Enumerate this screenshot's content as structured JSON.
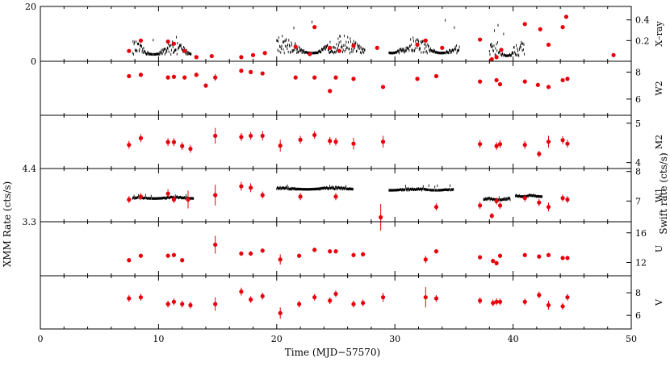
{
  "figure": {
    "xlabel": "Time (MJD−57570)",
    "left_ylabel": "XMM Rate (cts/s)",
    "right_ylabel": "Swift rate (cts/s)",
    "x_ticks": [
      "0",
      "10",
      "20",
      "30",
      "40",
      "50"
    ],
    "colors": {
      "xmm": "#000000",
      "swift": "#e8000b",
      "axis": "#000000"
    }
  },
  "chart_data": [
    {
      "type": "scatter",
      "panel": "X-ray",
      "band_label": "X–ray",
      "xlim": [
        0,
        50
      ],
      "left_ylim": [
        0,
        20
      ],
      "left_ticks": [
        "0",
        "20"
      ],
      "right_ylim": [
        0,
        0.53
      ],
      "right_ticks": [
        "0.2",
        "0.4"
      ],
      "xmm_segments": [
        {
          "x0": 7.8,
          "x1": 12.8,
          "base": 2.5,
          "amp": 5.0,
          "peak": 9.0
        },
        {
          "x0": 20.0,
          "x1": 27.5,
          "base": 3.0,
          "amp": 6.5,
          "peak": 15.0
        },
        {
          "x0": 29.5,
          "x1": 35.5,
          "base": 3.0,
          "amp": 6.0,
          "peak": 15.5
        },
        {
          "x0": 38.0,
          "x1": 41.0,
          "base": 2.0,
          "amp": 6.0,
          "peak": 15.0
        }
      ],
      "swift_points": [
        {
          "x": 7.5,
          "y": 0.1
        },
        {
          "x": 8.5,
          "y": 0.2
        },
        {
          "x": 10.8,
          "y": 0.19
        },
        {
          "x": 11.3,
          "y": 0.17
        },
        {
          "x": 12.2,
          "y": 0.1
        },
        {
          "x": 13.2,
          "y": 0.04
        },
        {
          "x": 14.5,
          "y": 0.05
        },
        {
          "x": 17.0,
          "y": 0.04
        },
        {
          "x": 18.0,
          "y": 0.06
        },
        {
          "x": 19.0,
          "y": 0.08
        },
        {
          "x": 21.6,
          "y": 0.14
        },
        {
          "x": 22.8,
          "y": 0.07
        },
        {
          "x": 23.2,
          "y": 0.33
        },
        {
          "x": 24.5,
          "y": 0.13
        },
        {
          "x": 25.3,
          "y": 0.1
        },
        {
          "x": 26.5,
          "y": 0.15
        },
        {
          "x": 28.5,
          "y": 0.13
        },
        {
          "x": 31.9,
          "y": 0.16
        },
        {
          "x": 32.6,
          "y": 0.2
        },
        {
          "x": 34.0,
          "y": 0.13
        },
        {
          "x": 37.2,
          "y": 0.21
        },
        {
          "x": 38.2,
          "y": 0.02
        },
        {
          "x": 38.6,
          "y": 0.04
        },
        {
          "x": 39.0,
          "y": 0.11
        },
        {
          "x": 41.0,
          "y": 0.36
        },
        {
          "x": 42.3,
          "y": 0.31
        },
        {
          "x": 43.0,
          "y": 0.16
        },
        {
          "x": 44.2,
          "y": 0.33
        },
        {
          "x": 44.5,
          "y": 0.43
        },
        {
          "x": 48.5,
          "y": 0.06
        }
      ]
    },
    {
      "type": "scatter",
      "panel": "W2",
      "band_label": "W2",
      "xlim": [
        0,
        50
      ],
      "right_ylim": [
        4.8,
        8.8
      ],
      "right_ticks": [
        "6",
        "8"
      ],
      "swift_points": [
        {
          "x": 7.5,
          "y": 7.7,
          "err": 0.15
        },
        {
          "x": 8.5,
          "y": 7.8,
          "err": 0.15
        },
        {
          "x": 10.8,
          "y": 7.6,
          "err": 0.15
        },
        {
          "x": 11.3,
          "y": 7.65,
          "err": 0.15
        },
        {
          "x": 12.2,
          "y": 7.6,
          "err": 0.15
        },
        {
          "x": 13.2,
          "y": 7.8,
          "err": 0.15
        },
        {
          "x": 14.0,
          "y": 7.0,
          "err": 0.15
        },
        {
          "x": 14.8,
          "y": 7.6,
          "err": 0.25
        },
        {
          "x": 17.0,
          "y": 8.1,
          "err": 0.15
        },
        {
          "x": 17.8,
          "y": 8.0,
          "err": 0.15
        },
        {
          "x": 18.8,
          "y": 7.9,
          "err": 0.15
        },
        {
          "x": 21.6,
          "y": 7.6,
          "err": 0.15
        },
        {
          "x": 23.2,
          "y": 7.6,
          "err": 0.15
        },
        {
          "x": 24.5,
          "y": 6.6,
          "err": 0.15
        },
        {
          "x": 25.0,
          "y": 7.6,
          "err": 0.15
        },
        {
          "x": 26.5,
          "y": 7.5,
          "err": 0.15
        },
        {
          "x": 29.0,
          "y": 6.9,
          "err": 0.15
        },
        {
          "x": 31.9,
          "y": 7.5,
          "err": 0.15
        },
        {
          "x": 33.5,
          "y": 7.7,
          "err": 0.15
        },
        {
          "x": 37.2,
          "y": 7.3,
          "err": 0.15
        },
        {
          "x": 38.6,
          "y": 7.4,
          "err": 0.15
        },
        {
          "x": 38.9,
          "y": 7.1,
          "err": 0.15
        },
        {
          "x": 41.0,
          "y": 7.3,
          "err": 0.15
        },
        {
          "x": 42.1,
          "y": 7.05,
          "err": 0.15
        },
        {
          "x": 43.0,
          "y": 6.9,
          "err": 0.15
        },
        {
          "x": 44.2,
          "y": 7.4,
          "err": 0.15
        },
        {
          "x": 44.6,
          "y": 7.5,
          "err": 0.15
        }
      ]
    },
    {
      "type": "scatter",
      "panel": "M2",
      "band_label": "M2",
      "xlim": [
        0,
        50
      ],
      "right_ylim": [
        3.85,
        5.2
      ],
      "right_ticks": [
        "4",
        "5"
      ],
      "swift_points": [
        {
          "x": 7.5,
          "y": 4.45,
          "err": 0.1
        },
        {
          "x": 8.5,
          "y": 4.62,
          "err": 0.1
        },
        {
          "x": 10.8,
          "y": 4.52,
          "err": 0.1
        },
        {
          "x": 11.3,
          "y": 4.52,
          "err": 0.1
        },
        {
          "x": 12.0,
          "y": 4.42,
          "err": 0.1
        },
        {
          "x": 12.7,
          "y": 4.35,
          "err": 0.1
        },
        {
          "x": 14.8,
          "y": 4.68,
          "err": 0.2
        },
        {
          "x": 17.0,
          "y": 4.65,
          "err": 0.1
        },
        {
          "x": 17.8,
          "y": 4.68,
          "err": 0.1
        },
        {
          "x": 18.8,
          "y": 4.68,
          "err": 0.12
        },
        {
          "x": 20.3,
          "y": 4.43,
          "err": 0.15
        },
        {
          "x": 22.0,
          "y": 4.58,
          "err": 0.1
        },
        {
          "x": 23.2,
          "y": 4.7,
          "err": 0.1
        },
        {
          "x": 24.5,
          "y": 4.55,
          "err": 0.1
        },
        {
          "x": 25.0,
          "y": 4.53,
          "err": 0.1
        },
        {
          "x": 26.5,
          "y": 4.48,
          "err": 0.15
        },
        {
          "x": 29.0,
          "y": 4.53,
          "err": 0.15
        },
        {
          "x": 37.2,
          "y": 4.47,
          "err": 0.1
        },
        {
          "x": 38.6,
          "y": 4.42,
          "err": 0.1
        },
        {
          "x": 38.9,
          "y": 4.47,
          "err": 0.1
        },
        {
          "x": 41.0,
          "y": 4.45,
          "err": 0.1
        },
        {
          "x": 42.2,
          "y": 4.22,
          "err": 0.08
        },
        {
          "x": 43.0,
          "y": 4.53,
          "err": 0.15
        },
        {
          "x": 44.2,
          "y": 4.57,
          "err": 0.1
        },
        {
          "x": 44.6,
          "y": 4.48,
          "err": 0.1
        }
      ]
    },
    {
      "type": "scatter",
      "panel": "W1",
      "band_label": "W1",
      "xlim": [
        0,
        50
      ],
      "left_ylim": [
        3.3,
        4.4
      ],
      "left_ticks": [
        "3.3",
        "4.4"
      ],
      "right_ylim": [
        6.3,
        8.1
      ],
      "right_ticks": [
        "7",
        "8"
      ],
      "xmm_segments": [
        {
          "x0": 7.8,
          "x1": 13.0,
          "base": 3.78,
          "amp": 0.04,
          "peak": 3.85
        },
        {
          "x0": 20.0,
          "x1": 26.5,
          "base": 3.97,
          "amp": 0.05,
          "peak": 4.05
        },
        {
          "x0": 29.5,
          "x1": 35.0,
          "base": 3.95,
          "amp": 0.05,
          "peak": 4.05
        },
        {
          "x0": 37.5,
          "x1": 39.8,
          "base": 3.75,
          "amp": 0.05,
          "peak": 3.8
        },
        {
          "x0": 40.2,
          "x1": 42.5,
          "base": 3.82,
          "amp": 0.04,
          "peak": 3.85
        }
      ],
      "swift_points": [
        {
          "x": 7.5,
          "y": 7.05,
          "err": 0.12
        },
        {
          "x": 8.5,
          "y": 7.15,
          "err": 0.12
        },
        {
          "x": 10.8,
          "y": 7.25,
          "err": 0.15
        },
        {
          "x": 11.3,
          "y": 7.05,
          "err": 0.12
        },
        {
          "x": 12.5,
          "y": 7.05,
          "err": 0.3
        },
        {
          "x": 14.8,
          "y": 7.2,
          "err": 0.35
        },
        {
          "x": 17.0,
          "y": 7.5,
          "err": 0.15
        },
        {
          "x": 17.8,
          "y": 7.45,
          "err": 0.15
        },
        {
          "x": 18.8,
          "y": 7.2,
          "err": 0.12
        },
        {
          "x": 22.0,
          "y": 7.15,
          "err": 0.12
        },
        {
          "x": 25.0,
          "y": 7.15,
          "err": 0.12
        },
        {
          "x": 28.8,
          "y": 6.45,
          "err": 0.45
        },
        {
          "x": 33.5,
          "y": 6.8,
          "err": 0.12
        },
        {
          "x": 37.2,
          "y": 6.85,
          "err": 0.12
        },
        {
          "x": 38.2,
          "y": 6.5,
          "err": 0.1
        },
        {
          "x": 38.6,
          "y": 7.0,
          "err": 0.12
        },
        {
          "x": 38.9,
          "y": 6.85,
          "err": 0.12
        },
        {
          "x": 41.0,
          "y": 7.1,
          "err": 0.12
        },
        {
          "x": 42.2,
          "y": 6.95,
          "err": 0.12
        },
        {
          "x": 43.0,
          "y": 6.8,
          "err": 0.15
        },
        {
          "x": 44.2,
          "y": 7.1,
          "err": 0.12
        },
        {
          "x": 44.6,
          "y": 7.05,
          "err": 0.12
        }
      ]
    },
    {
      "type": "scatter",
      "panel": "U",
      "band_label": "U",
      "xlim": [
        0,
        50
      ],
      "right_ylim": [
        10.2,
        17.5
      ],
      "right_ticks": [
        "12",
        "16"
      ],
      "swift_points": [
        {
          "x": 7.5,
          "y": 12.3,
          "err": 0.3
        },
        {
          "x": 8.5,
          "y": 12.9,
          "err": 0.3
        },
        {
          "x": 10.8,
          "y": 12.9,
          "err": 0.3
        },
        {
          "x": 11.3,
          "y": 13.0,
          "err": 0.3
        },
        {
          "x": 12.0,
          "y": 12.3,
          "err": 0.3
        },
        {
          "x": 14.8,
          "y": 14.4,
          "err": 1.2
        },
        {
          "x": 17.0,
          "y": 13.2,
          "err": 0.3
        },
        {
          "x": 17.8,
          "y": 13.2,
          "err": 0.3
        },
        {
          "x": 18.8,
          "y": 13.6,
          "err": 0.3
        },
        {
          "x": 20.3,
          "y": 12.4,
          "err": 0.7
        },
        {
          "x": 21.9,
          "y": 12.9,
          "err": 0.3
        },
        {
          "x": 23.2,
          "y": 13.7,
          "err": 0.3
        },
        {
          "x": 24.5,
          "y": 13.5,
          "err": 0.3
        },
        {
          "x": 25.0,
          "y": 13.5,
          "err": 0.3
        },
        {
          "x": 26.5,
          "y": 13.0,
          "err": 0.3
        },
        {
          "x": 27.3,
          "y": 13.1,
          "err": 0.3
        },
        {
          "x": 32.6,
          "y": 12.4,
          "err": 0.5
        },
        {
          "x": 33.5,
          "y": 13.5,
          "err": 0.3
        },
        {
          "x": 37.2,
          "y": 12.7,
          "err": 0.3
        },
        {
          "x": 38.3,
          "y": 12.2,
          "err": 0.3
        },
        {
          "x": 38.6,
          "y": 11.9,
          "err": 0.3
        },
        {
          "x": 38.9,
          "y": 12.9,
          "err": 0.3
        },
        {
          "x": 41.0,
          "y": 13.0,
          "err": 0.3
        },
        {
          "x": 42.2,
          "y": 12.8,
          "err": 0.3
        },
        {
          "x": 43.0,
          "y": 13.0,
          "err": 0.3
        },
        {
          "x": 44.2,
          "y": 12.6,
          "err": 0.3
        },
        {
          "x": 44.6,
          "y": 12.6,
          "err": 0.3
        }
      ]
    },
    {
      "type": "scatter",
      "panel": "V",
      "band_label": "V",
      "xlim": [
        0,
        50
      ],
      "right_ylim": [
        4.8,
        9.5
      ],
      "right_ticks": [
        "6",
        "8"
      ],
      "swift_points": [
        {
          "x": 7.5,
          "y": 7.5,
          "err": 0.3
        },
        {
          "x": 8.5,
          "y": 7.6,
          "err": 0.3
        },
        {
          "x": 10.8,
          "y": 7.0,
          "err": 0.3
        },
        {
          "x": 11.3,
          "y": 7.2,
          "err": 0.3
        },
        {
          "x": 12.0,
          "y": 7.0,
          "err": 0.3
        },
        {
          "x": 12.7,
          "y": 6.9,
          "err": 0.3
        },
        {
          "x": 14.8,
          "y": 7.0,
          "err": 0.6
        },
        {
          "x": 17.0,
          "y": 8.1,
          "err": 0.35
        },
        {
          "x": 17.8,
          "y": 7.4,
          "err": 0.3
        },
        {
          "x": 18.8,
          "y": 7.7,
          "err": 0.3
        },
        {
          "x": 20.3,
          "y": 6.2,
          "err": 0.5
        },
        {
          "x": 21.9,
          "y": 7.0,
          "err": 0.3
        },
        {
          "x": 23.2,
          "y": 7.6,
          "err": 0.3
        },
        {
          "x": 24.5,
          "y": 7.3,
          "err": 0.3
        },
        {
          "x": 25.0,
          "y": 7.9,
          "err": 0.3
        },
        {
          "x": 26.5,
          "y": 7.0,
          "err": 0.3
        },
        {
          "x": 27.3,
          "y": 7.1,
          "err": 0.3
        },
        {
          "x": 29.0,
          "y": 7.6,
          "err": 0.4
        },
        {
          "x": 32.6,
          "y": 7.6,
          "err": 0.9
        },
        {
          "x": 33.5,
          "y": 7.5,
          "err": 0.3
        },
        {
          "x": 37.2,
          "y": 7.3,
          "err": 0.3
        },
        {
          "x": 38.3,
          "y": 7.1,
          "err": 0.3
        },
        {
          "x": 38.6,
          "y": 7.2,
          "err": 0.3
        },
        {
          "x": 38.9,
          "y": 7.2,
          "err": 0.3
        },
        {
          "x": 41.0,
          "y": 7.2,
          "err": 0.3
        },
        {
          "x": 42.2,
          "y": 7.8,
          "err": 0.3
        },
        {
          "x": 43.0,
          "y": 6.9,
          "err": 0.4
        },
        {
          "x": 44.2,
          "y": 6.8,
          "err": 0.3
        },
        {
          "x": 44.6,
          "y": 7.6,
          "err": 0.3
        }
      ]
    }
  ]
}
